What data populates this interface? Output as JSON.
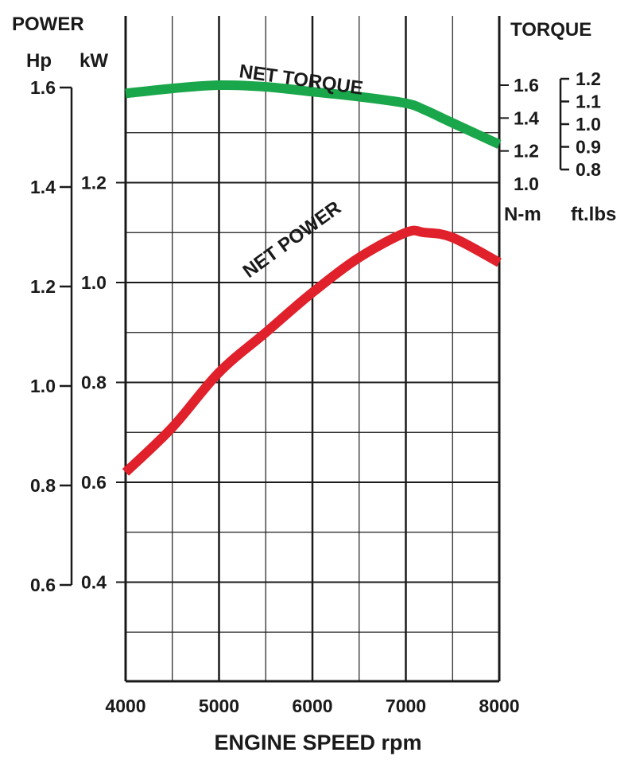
{
  "chart_data": {
    "type": "line",
    "labels": {
      "power": "POWER",
      "torque": "TORQUE",
      "hp_unit": "Hp",
      "kw_unit": "kW",
      "nm_unit": "N-m",
      "ftlbs_unit": "ft.lbs",
      "xlabel": "ENGINE SPEED rpm"
    },
    "x": [
      4000,
      4500,
      5000,
      5500,
      6000,
      6500,
      7000,
      7200,
      7500,
      8000
    ],
    "x_ticks": [
      "4000",
      "5000",
      "6000",
      "7000",
      "8000"
    ],
    "xlim": [
      4000,
      8000
    ],
    "kw_ticks": [
      "0.4",
      "0.6",
      "0.8",
      "1.0",
      "1.2"
    ],
    "kw_ylim": [
      0.2,
      1.4
    ],
    "hp_ticks": [
      "0.6",
      "0.8",
      "1.0",
      "1.2",
      "1.4",
      "1.6"
    ],
    "nm_ticks": [
      "1.0",
      "1.2",
      "1.4",
      "1.6"
    ],
    "ftlbs_ticks": [
      "0.8",
      "0.9",
      "1.0",
      "1.1",
      "1.2"
    ],
    "series": [
      {
        "name": "NET TORQUE",
        "unit": "N-m",
        "color": "#1aa64a",
        "values": [
          1.55,
          1.58,
          1.6,
          1.59,
          1.56,
          1.53,
          1.49,
          1.45,
          1.37,
          1.24
        ]
      },
      {
        "name": "NET POWER",
        "unit": "kW",
        "color": "#e0202a",
        "values": [
          0.62,
          0.71,
          0.82,
          0.9,
          0.98,
          1.05,
          1.1,
          1.1,
          1.09,
          1.04
        ]
      }
    ],
    "grid": true
  }
}
